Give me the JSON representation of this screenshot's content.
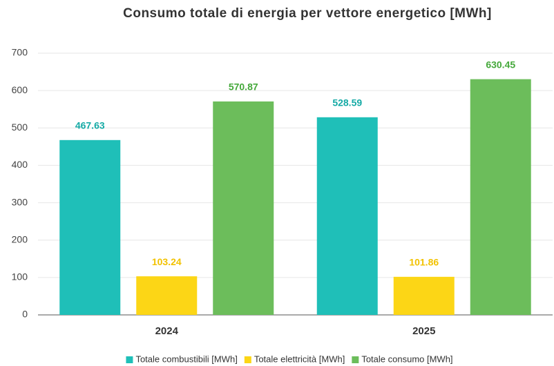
{
  "chart_data": {
    "type": "bar",
    "title": "Consumo totale di energia per vettore energetico [MWh]",
    "categories": [
      "2024",
      "2025"
    ],
    "series": [
      {
        "name": "Totale combustibili [MWh]",
        "color": "#1fbfb8",
        "label_color": "#14aaa5",
        "values": [
          467.63,
          528.59
        ]
      },
      {
        "name": "Totale elettricità [MWh]",
        "color": "#fcd616",
        "label_color": "#f2c200",
        "values": [
          103.24,
          101.86
        ]
      },
      {
        "name": "Totale consumo [MWh]",
        "color": "#6cbd5b",
        "label_color": "#44a83a",
        "values": [
          570.87,
          630.45
        ]
      }
    ],
    "ylim": [
      0,
      700
    ],
    "yticks": [
      0,
      100,
      200,
      300,
      400,
      500,
      600,
      700
    ],
    "grid": true,
    "legend": "bottom"
  }
}
